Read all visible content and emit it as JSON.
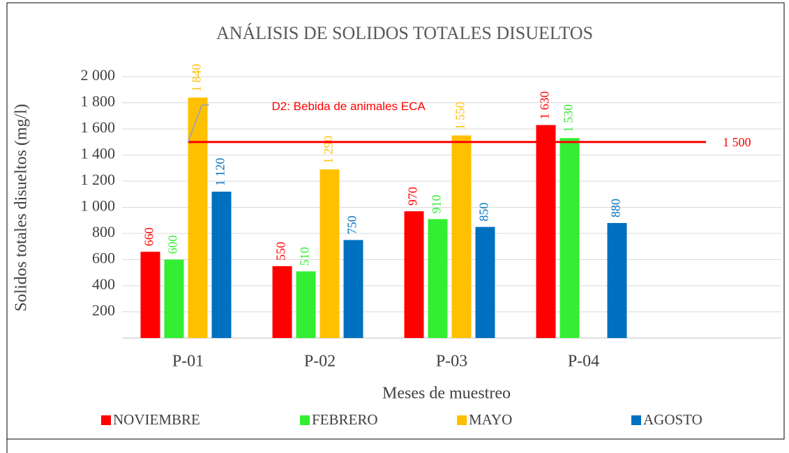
{
  "chart_data": {
    "type": "bar",
    "title": "ANÁLISIS DE SOLIDOS TOTALES DISUELTOS",
    "x_label": "Meses de muestreo",
    "y_label": "Solidos totales disueltos (mg/l)",
    "categories": [
      "P-01",
      "P-02",
      "P-03",
      "P-04",
      null
    ],
    "series": [
      {
        "name": "NOVIEMBRE",
        "color": "#ff0000",
        "values": [
          660,
          550,
          970,
          1630,
          null
        ],
        "value_labels": [
          "660",
          "550",
          "970",
          "1 630",
          null
        ]
      },
      {
        "name": "FEBRERO",
        "color": "#33ee33",
        "values": [
          600,
          510,
          910,
          1530,
          null
        ],
        "value_labels": [
          "600",
          "510",
          "910",
          "1 530",
          null
        ]
      },
      {
        "name": "MAYO",
        "color": "#ffc000",
        "values": [
          1840,
          1290,
          1550,
          null,
          null
        ],
        "value_labels": [
          "1 840",
          "1 290",
          "1 550",
          null,
          null
        ]
      },
      {
        "name": "AGOSTO",
        "color": "#0070c0",
        "values": [
          1120,
          750,
          850,
          880,
          null
        ],
        "value_labels": [
          "1 120",
          "750",
          "850",
          "880",
          null
        ]
      }
    ],
    "reference_line": {
      "value": 1500,
      "label": "1 500",
      "annotation": "D2: Bebida de animales ECA",
      "color": "#ff0000"
    },
    "ylim": [
      0,
      2000
    ],
    "yticks": [
      200,
      400,
      600,
      800,
      {
        "value": 1000,
        "label": "1 000"
      },
      {
        "value": 1200,
        "label": "1 200"
      },
      {
        "value": 1400,
        "label": "1 400"
      },
      {
        "value": 1600,
        "label": "1 600"
      },
      {
        "value": 1800,
        "label": "1 800"
      },
      {
        "value": 2000,
        "label": "2 000"
      }
    ],
    "grid": true,
    "legend": "bottom"
  }
}
